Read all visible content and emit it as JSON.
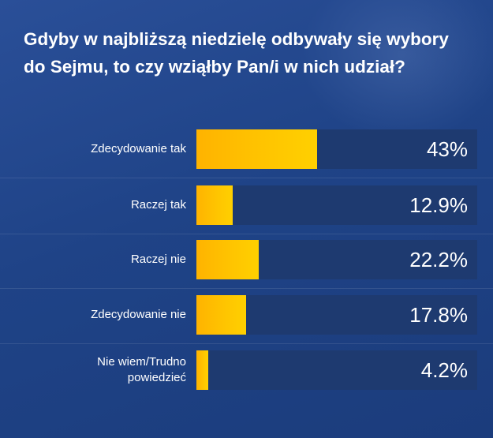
{
  "chart_data": {
    "type": "bar",
    "orientation": "horizontal",
    "title": "Gdyby w najbliższą niedzielę odbywały się wybory do Sejmu, to czy wziąłby Pan/i w nich udział?",
    "categories": [
      "Zdecydowanie tak",
      "Raczej tak",
      "Raczej nie",
      "Zdecydowanie nie",
      "Nie wiem/Trudno powiedzieć"
    ],
    "values": [
      43,
      12.9,
      22.2,
      17.8,
      4.2
    ],
    "value_labels": [
      "43%",
      "12.9%",
      "22.2%",
      "17.8%",
      "4.2%"
    ],
    "xlim": [
      0,
      100
    ],
    "grid": false,
    "colors": {
      "bar": "#ffc400",
      "track": "#1e3a70",
      "background": "#1f4387",
      "text": "#ffffff"
    }
  }
}
